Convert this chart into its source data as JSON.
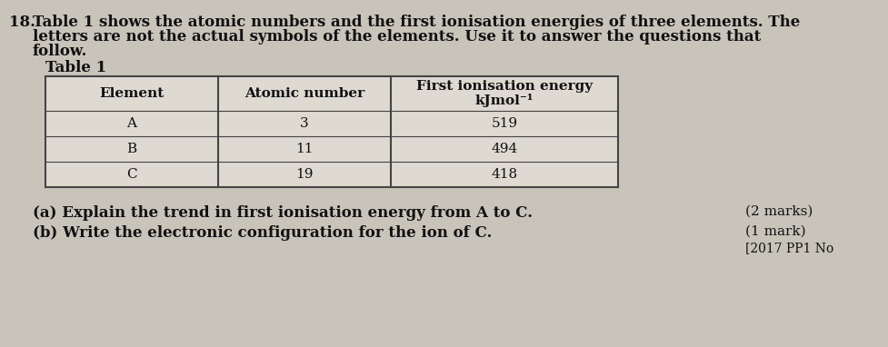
{
  "question_number": "18.",
  "intro_line1": "Table 1 shows the atomic numbers and the first ionisation energies of three elements. The",
  "intro_line2": "letters are not the actual symbols of the elements. Use it to answer the questions that",
  "intro_line3": "follow.",
  "table_title": "Table 1",
  "col_headers_line1": [
    "Element",
    "Atomic number",
    "First ionisation energy"
  ],
  "col_headers_line2": [
    "",
    "",
    "kJmol⁻¹"
  ],
  "rows": [
    [
      "A",
      "3",
      "519"
    ],
    [
      "B",
      "11",
      "494"
    ],
    [
      "C",
      "19",
      "418"
    ]
  ],
  "question_a": "(a) Explain the trend in first ionisation energy from A to C.",
  "question_b": "(b) Write the electronic configuration for the ion of C.",
  "mark_a": "(2 marks)",
  "mark_b": "(1 mark)",
  "ref": "[2017 PP1 No",
  "bg_color": "#c8c4ba",
  "table_bg": "#dedad2",
  "line_color": "#444444",
  "text_color": "#111111"
}
